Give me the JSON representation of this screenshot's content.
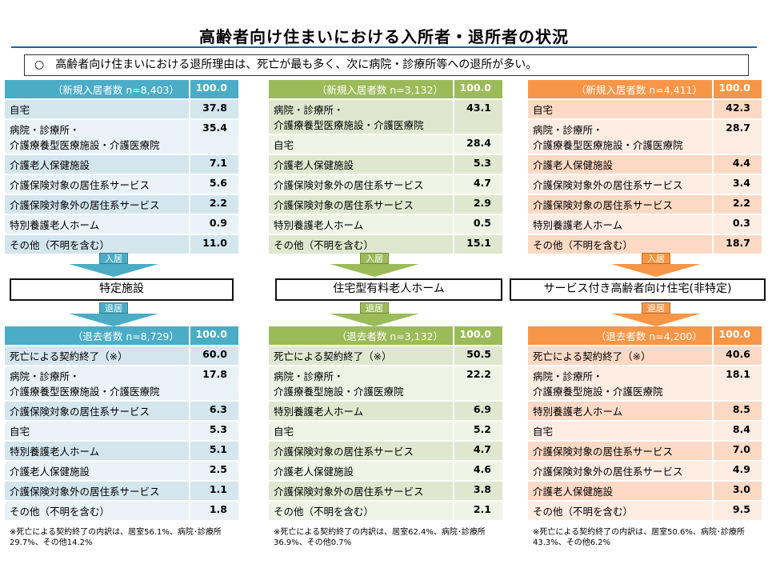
{
  "title": "高齢者向け住まいにおける入所者・退所者の状況",
  "summary": "○　高齢者向け住まいにおける退所理由は、死亡が最も多く、次に病院・診療所等への退所が多い。",
  "arrow_in": "入居",
  "arrow_out": "退居",
  "columns": [
    {
      "name": "特定施設",
      "color": "#4bacc6",
      "row_a": "#d3e6ee",
      "row_b": "#e9f2f6",
      "in_header": "（新規入居者数 n=8,403）",
      "in_total": "100.0",
      "in_rows": [
        {
          "label": "自宅",
          "value": "37.8"
        },
        {
          "label": "病院・診療所・\n介護療養型医療施設・介護医療院",
          "value": "35.4"
        },
        {
          "label": "介護老人保健施設",
          "value": "7.1"
        },
        {
          "label": "介護保険対象の居住系サービス",
          "value": "5.6"
        },
        {
          "label": "介護保険対象外の居住系サービス",
          "value": "2.2"
        },
        {
          "label": "特別養護老人ホーム",
          "value": "0.9"
        },
        {
          "label": "その他（不明を含む）",
          "value": "11.0"
        }
      ],
      "out_header": "（退去者数 n=8,729）",
      "out_total": "100.0",
      "out_rows": [
        {
          "label": "死亡による契約終了（※）",
          "value": "60.0"
        },
        {
          "label": "病院・診療所・\n介護療養型医療施設・介護医療院",
          "value": "17.8"
        },
        {
          "label": "介護保険対象の居住系サービス",
          "value": "6.3"
        },
        {
          "label": "自宅",
          "value": "5.3"
        },
        {
          "label": "特別養護老人ホーム",
          "value": "5.1"
        },
        {
          "label": "介護老人保健施設",
          "value": "2.5"
        },
        {
          "label": "介護保険対象外の居住系サービス",
          "value": "1.1"
        },
        {
          "label": "その他（不明を含む）",
          "value": "1.8"
        }
      ],
      "note": "※死亡による契約終了の内訳は、居室56.1%、病院･診療所29.7%、その他14.2%"
    },
    {
      "name": "住宅型有料老人ホーム",
      "color": "#9bbb59",
      "row_a": "#dfe8cf",
      "row_b": "#eef3e6",
      "in_header": "（新規入居者数 n=3,132）",
      "in_total": "100.0",
      "in_rows": [
        {
          "label": "病院・診療所・\n介護療養型医療施設・介護医療院",
          "value": "43.1"
        },
        {
          "label": "自宅",
          "value": "28.4"
        },
        {
          "label": "介護老人保健施設",
          "value": "5.3"
        },
        {
          "label": "介護保険対象外の居住系サービス",
          "value": "4.7"
        },
        {
          "label": "介護保険対象の居住系サービス",
          "value": "2.9"
        },
        {
          "label": "特別養護老人ホーム",
          "value": "0.5"
        },
        {
          "label": "その他（不明を含む）",
          "value": "15.1"
        }
      ],
      "out_header": "（退去者数 n=3,132）",
      "out_total": "100.0",
      "out_rows": [
        {
          "label": "死亡による契約終了（※）",
          "value": "50.5"
        },
        {
          "label": "病院・診療所・\n介護療養型施設・介護医療院",
          "value": "22.2"
        },
        {
          "label": "特別養護老人ホーム",
          "value": "6.9"
        },
        {
          "label": "自宅",
          "value": "5.2"
        },
        {
          "label": "介護保険対象の居住系サービス",
          "value": "4.7"
        },
        {
          "label": "介護老人保健施設",
          "value": "4.6"
        },
        {
          "label": "介護保険対象外の居住系サービス",
          "value": "3.8"
        },
        {
          "label": "その他（不明を含む）",
          "value": "2.1"
        }
      ],
      "note": "※死亡による契約終了の内訳は、居室62.4%、病院･診療所36.9%、その他0.7%"
    },
    {
      "name": "サービス付き高齢者向け住宅(非特定)",
      "color": "#f79646",
      "row_a": "#fcd9c4",
      "row_b": "#fdece2",
      "in_header": "（新規入居者数 n=4,411）",
      "in_total": "100.0",
      "in_rows": [
        {
          "label": "自宅",
          "value": "42.3"
        },
        {
          "label": "病院・診療所・\n介護療養型医療施設・介護医療院",
          "value": "28.7"
        },
        {
          "label": "介護老人保健施設",
          "value": "4.4"
        },
        {
          "label": "介護保険対象外の居住系サービス",
          "value": "3.4"
        },
        {
          "label": "介護保険対象の居住系サービス",
          "value": "2.2"
        },
        {
          "label": "特別養護老人ホーム",
          "value": "0.3"
        },
        {
          "label": "その他（不明を含む）",
          "value": "18.7"
        }
      ],
      "out_header": "（退去者数 n=4,200）",
      "out_total": "100.0",
      "out_rows": [
        {
          "label": "死亡による契約終了（※）",
          "value": "40.6"
        },
        {
          "label": "病院・診療所・\n介護療養型施設・介護医療院",
          "value": "18.1"
        },
        {
          "label": "特別養護老人ホーム",
          "value": "8.5"
        },
        {
          "label": "自宅",
          "value": "8.4"
        },
        {
          "label": "介護保険対象の居住系サービス",
          "value": "7.0"
        },
        {
          "label": "介護保険対象外の居住系サービス",
          "value": "4.9"
        },
        {
          "label": "介護老人保健施設",
          "value": "3.0"
        },
        {
          "label": "その他（不明を含む）",
          "value": "9.5"
        }
      ],
      "note": "※死亡による契約終了の内訳は、居室50.6%、病院･診療所43.3%、その他6.2%"
    }
  ]
}
